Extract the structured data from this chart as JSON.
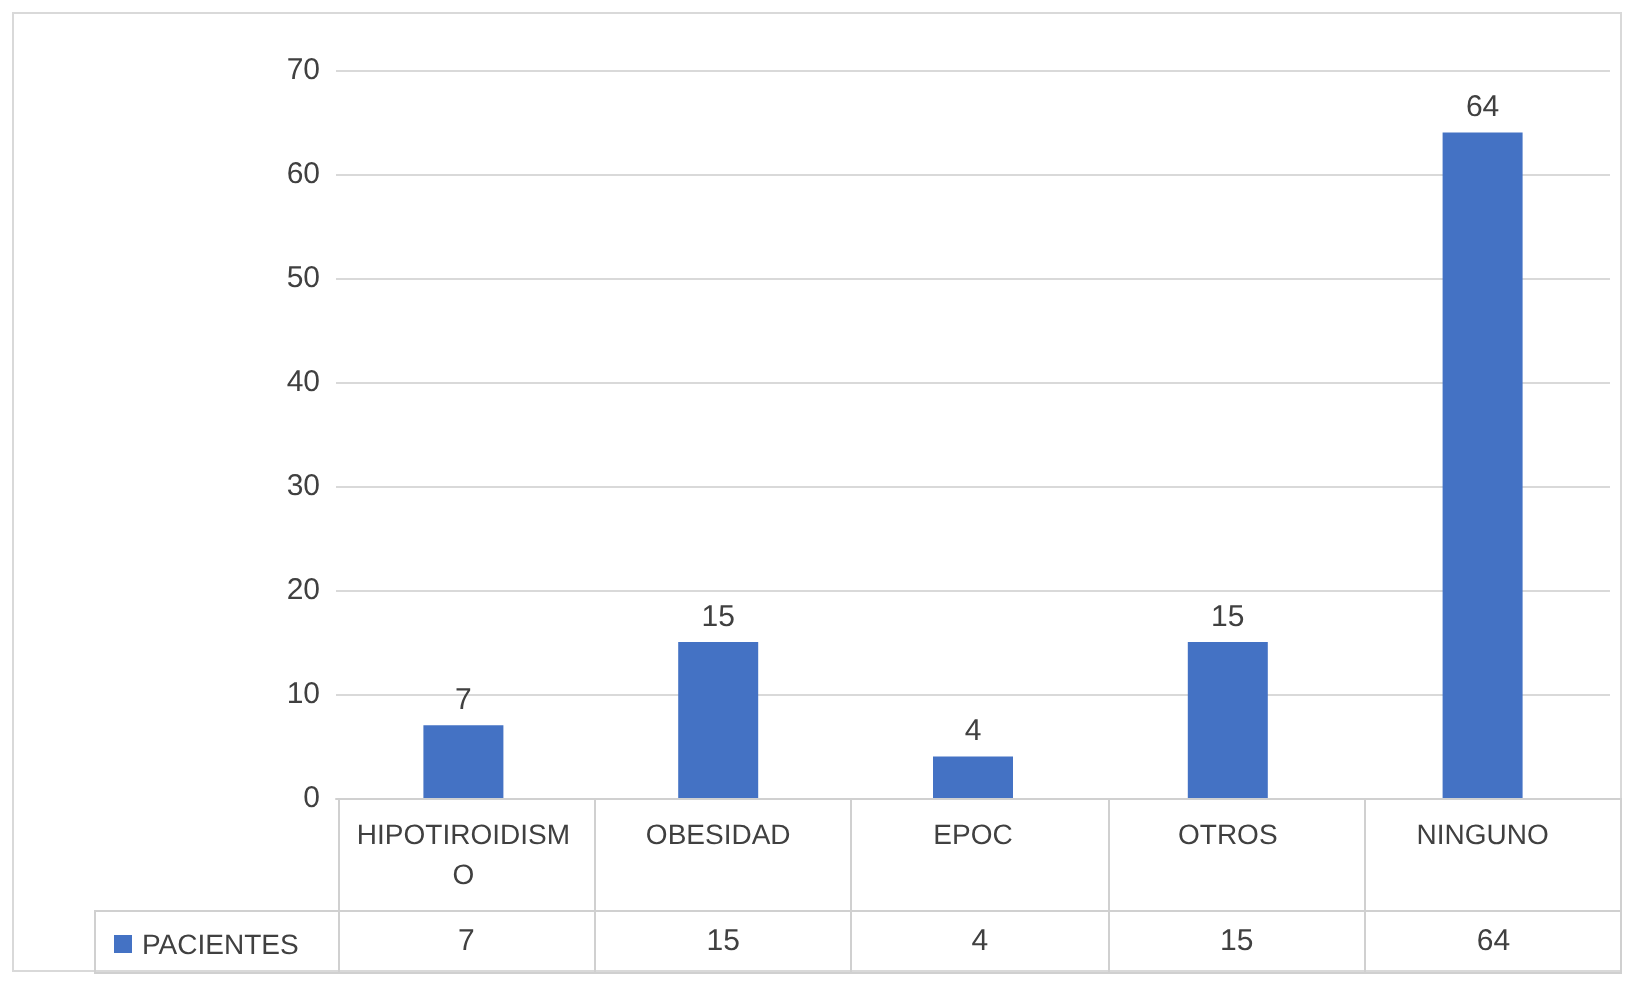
{
  "chart_data": {
    "type": "bar",
    "categories": [
      "HIPOTIROIDISMO",
      "OBESIDAD",
      "EPOC",
      "OTROS",
      "NINGUNO"
    ],
    "series": [
      {
        "name": "PACIENTES",
        "color": "#4472c4",
        "values": [
          7,
          15,
          4,
          15,
          64
        ],
        "value_labels": [
          "7",
          "15",
          "4",
          "15",
          "64"
        ]
      }
    ],
    "ylim": [
      0,
      70
    ],
    "yticks": [
      0,
      10,
      20,
      30,
      40,
      50,
      60,
      70
    ],
    "grid": "y",
    "data_labels": true,
    "legend": "bottom left"
  }
}
